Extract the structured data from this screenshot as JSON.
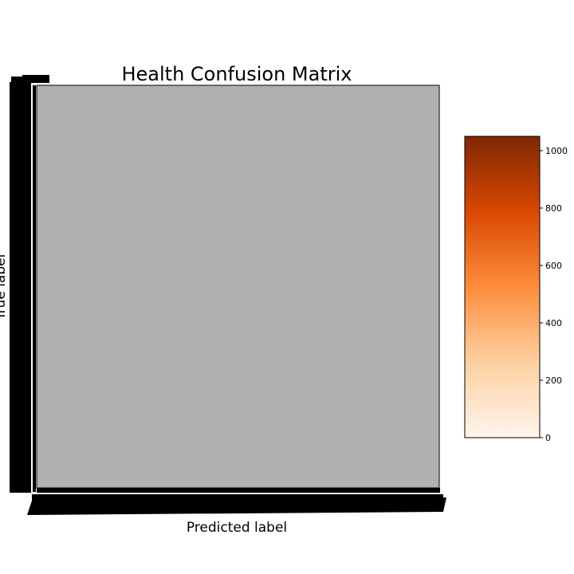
{
  "chart_data": {
    "type": "heatmap",
    "title": "Health Confusion Matrix",
    "xlabel": "Predicted label",
    "ylabel": "True label",
    "matrix_fill_color": "#b0b0b0",
    "colormap": "Oranges",
    "colorbar": {
      "range": [
        0,
        1050
      ],
      "ticks": [
        0,
        200,
        400,
        600,
        800,
        1000
      ],
      "colors": [
        "#fff5eb",
        "#fdd0a2",
        "#fd8d3c",
        "#d94801",
        "#7f2704"
      ]
    },
    "tick_labels_overlapping": true,
    "grid": false,
    "legend": "colorbar right"
  }
}
